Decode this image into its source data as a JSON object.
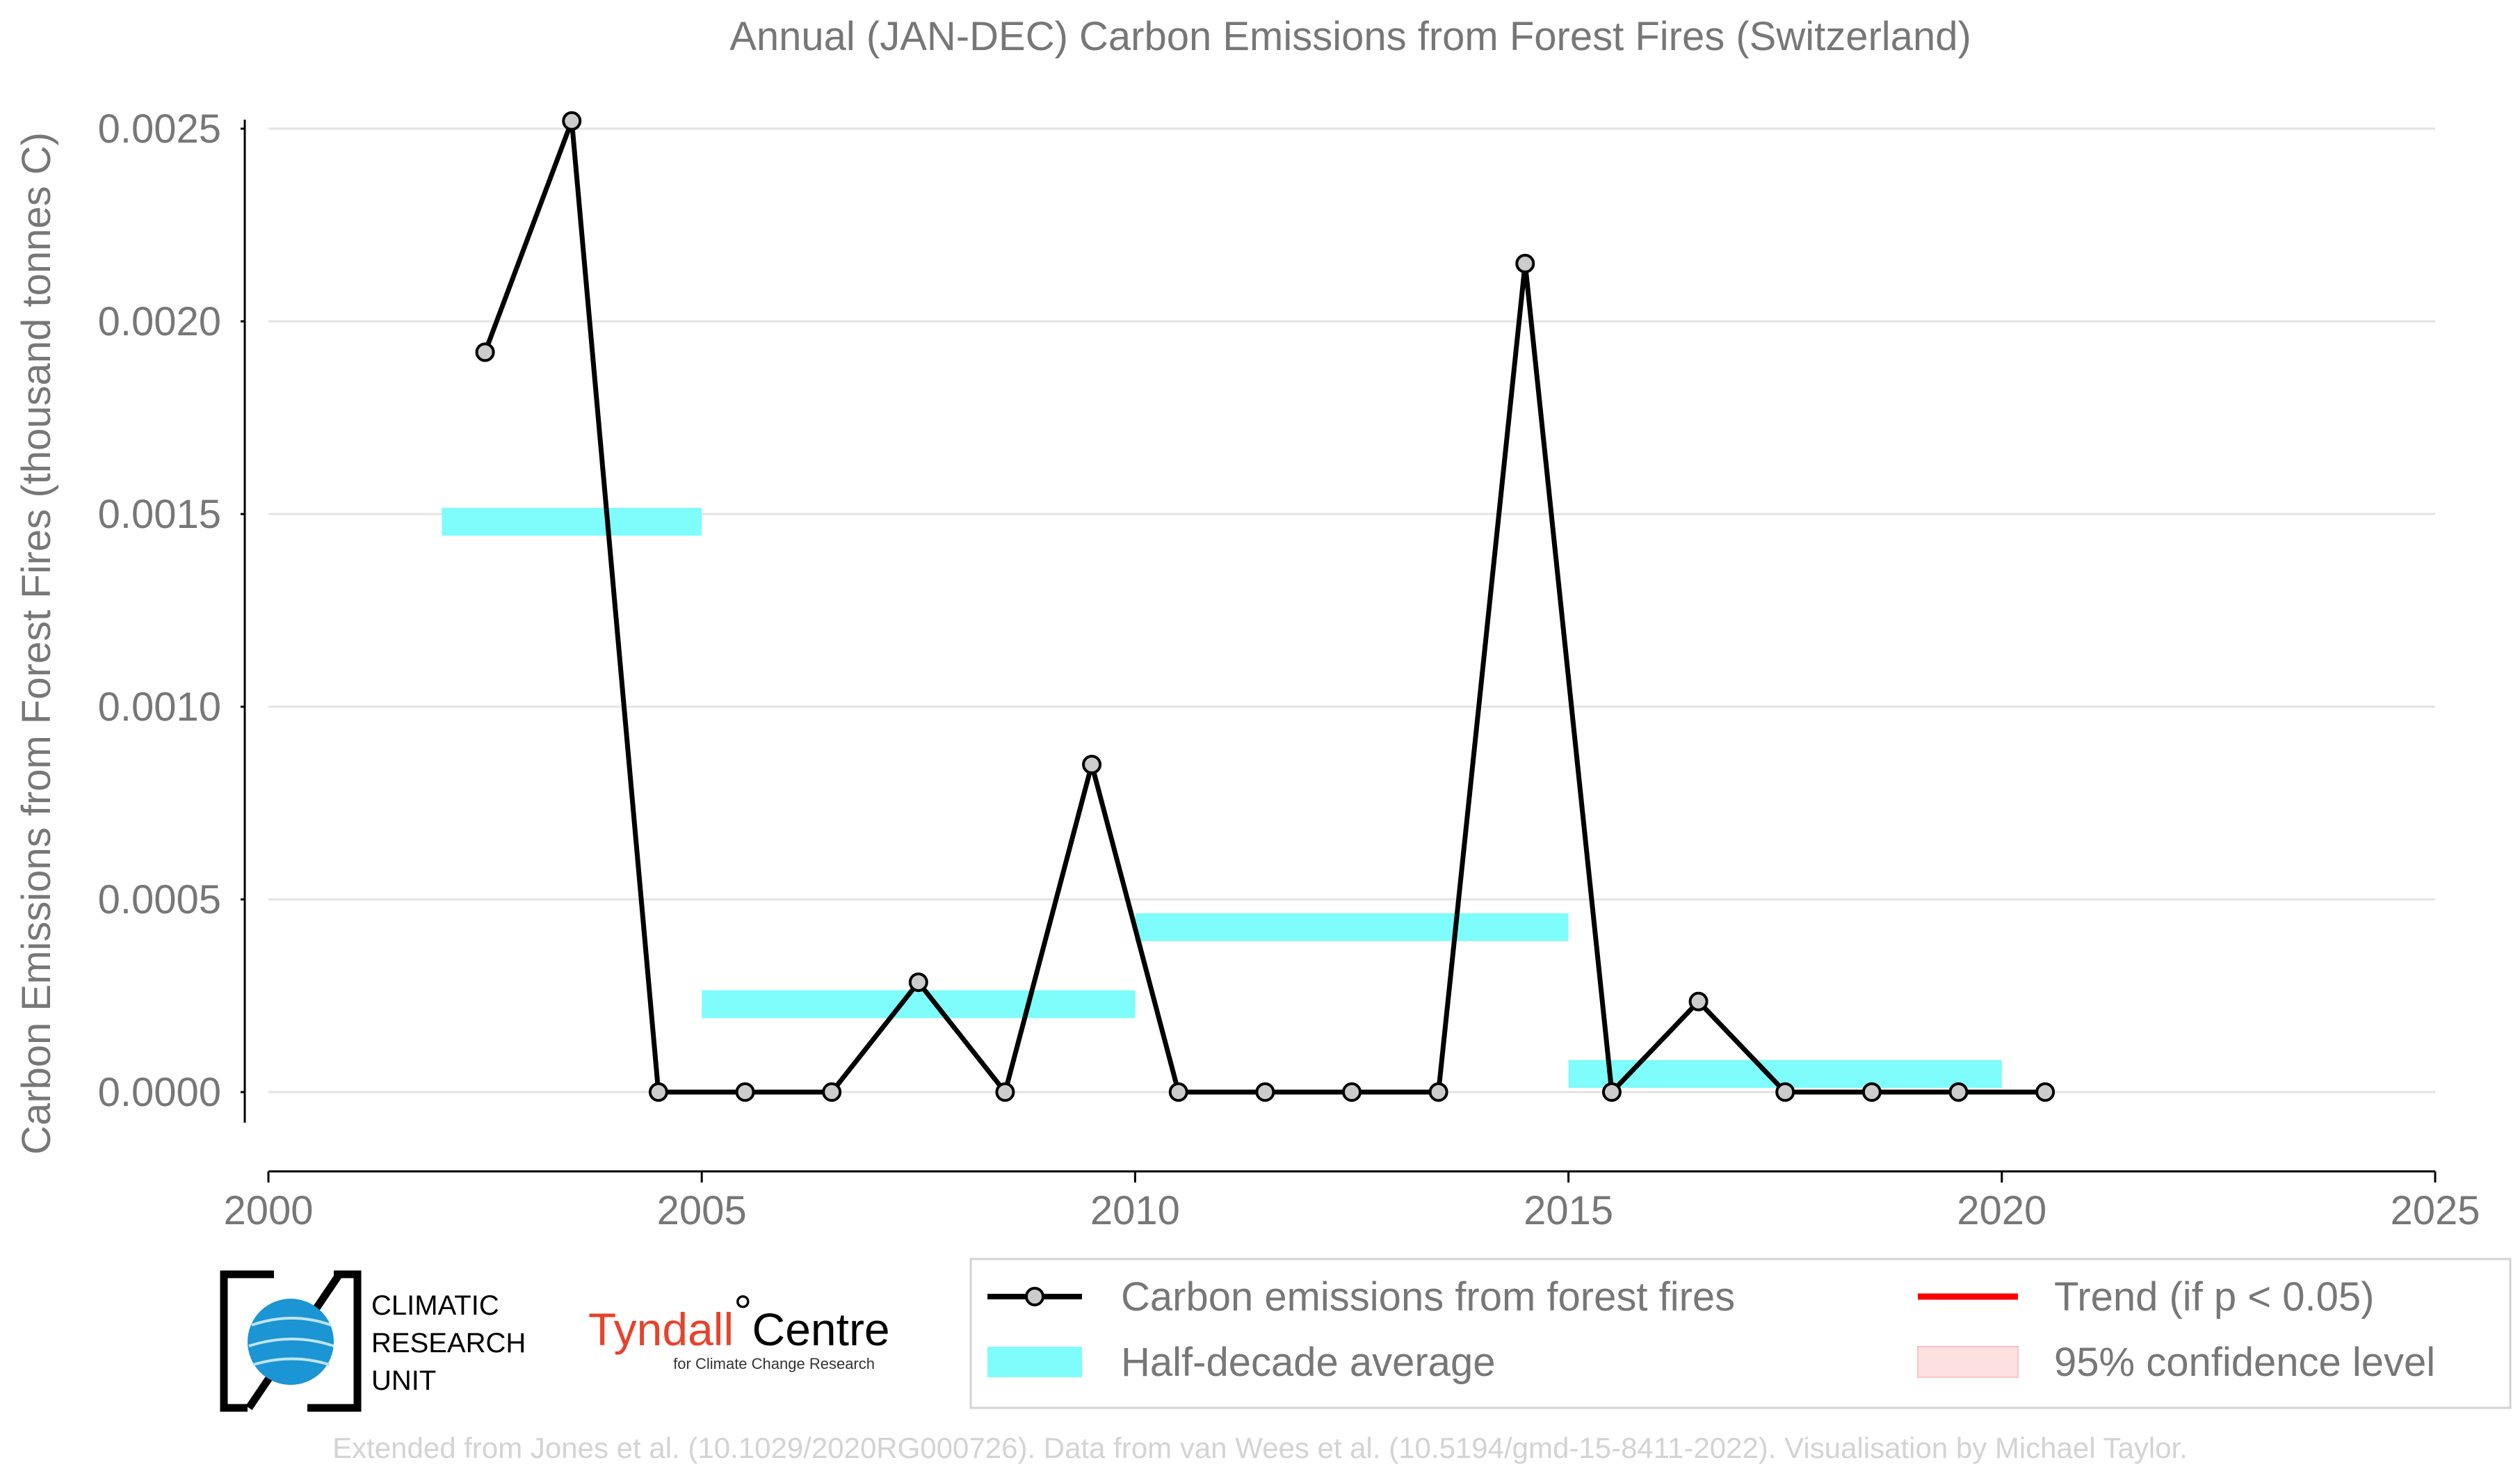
{
  "chart_data": {
    "type": "line",
    "title": "Annual (JAN-DEC) Carbon Emissions from Forest Fires (Switzerland)",
    "ylabel": "Carbon Emissions from Forest Fires (thousand tonnes C)",
    "xlabel": "",
    "xlim": [
      2000,
      2025
    ],
    "ylim": [
      -0.0002,
      0.0026
    ],
    "x_ticks": [
      2000,
      2005,
      2010,
      2015,
      2020,
      2025
    ],
    "y_ticks": [
      "0.0000",
      "0.0005",
      "0.0010",
      "0.0015",
      "0.0020",
      "0.0025"
    ],
    "grid": "horizontal",
    "series": [
      {
        "name": "Carbon emissions from forest fires",
        "color": "#000000",
        "x": [
          2002.5,
          2003.5,
          2004.5,
          2005.5,
          2006.5,
          2007.5,
          2008.5,
          2009.5,
          2010.5,
          2011.5,
          2012.5,
          2013.5,
          2014.5,
          2015.5,
          2016.5,
          2017.5,
          2018.5,
          2019.5,
          2020.5
        ],
        "values": [
          0.00192,
          0.00252,
          0.0,
          0.0,
          0.0,
          0.000285,
          0.0,
          0.00085,
          0.0,
          0.0,
          0.0,
          0.0,
          0.00215,
          0.0,
          0.000235,
          0.0,
          0.0,
          0.0,
          0.0
        ]
      }
    ],
    "half_decade_average": {
      "name": "Half-decade average",
      "color": "#7ffcfc",
      "segments": [
        {
          "x_start": 2002,
          "x_end": 2005,
          "value": 0.00148
        },
        {
          "x_start": 2005,
          "x_end": 2010,
          "value": 0.000228
        },
        {
          "x_start": 2010,
          "x_end": 2015,
          "value": 0.000428
        },
        {
          "x_start": 2015,
          "x_end": 2020,
          "value": 4.7e-05
        }
      ]
    },
    "legend": {
      "placement": "bottom-right",
      "items": [
        {
          "label": "Carbon emissions from forest fires",
          "kind": "line-marker",
          "color": "#000000"
        },
        {
          "label": "Trend (if p < 0.05)",
          "kind": "line",
          "color": "#ff0000"
        },
        {
          "label": "Half-decade average",
          "kind": "band",
          "color": "#7ffcfc"
        },
        {
          "label": "95% confidence level",
          "kind": "band",
          "color": "#fde0e0"
        }
      ]
    }
  },
  "logos": {
    "cru_lines": [
      "CLIMATIC",
      "RESEARCH",
      "UNIT"
    ],
    "tyndall_name_a": "Tyndall",
    "tyndall_name_b": "Centre",
    "tyndall_degree": "°",
    "tyndall_subtitle": "for Climate Change Research"
  },
  "footer": "Extended from Jones et al. (10.1029/2020RG000726). Data from van Wees et al. (10.5194/gmd-15-8411-2022). Visualisation by Michael Taylor."
}
